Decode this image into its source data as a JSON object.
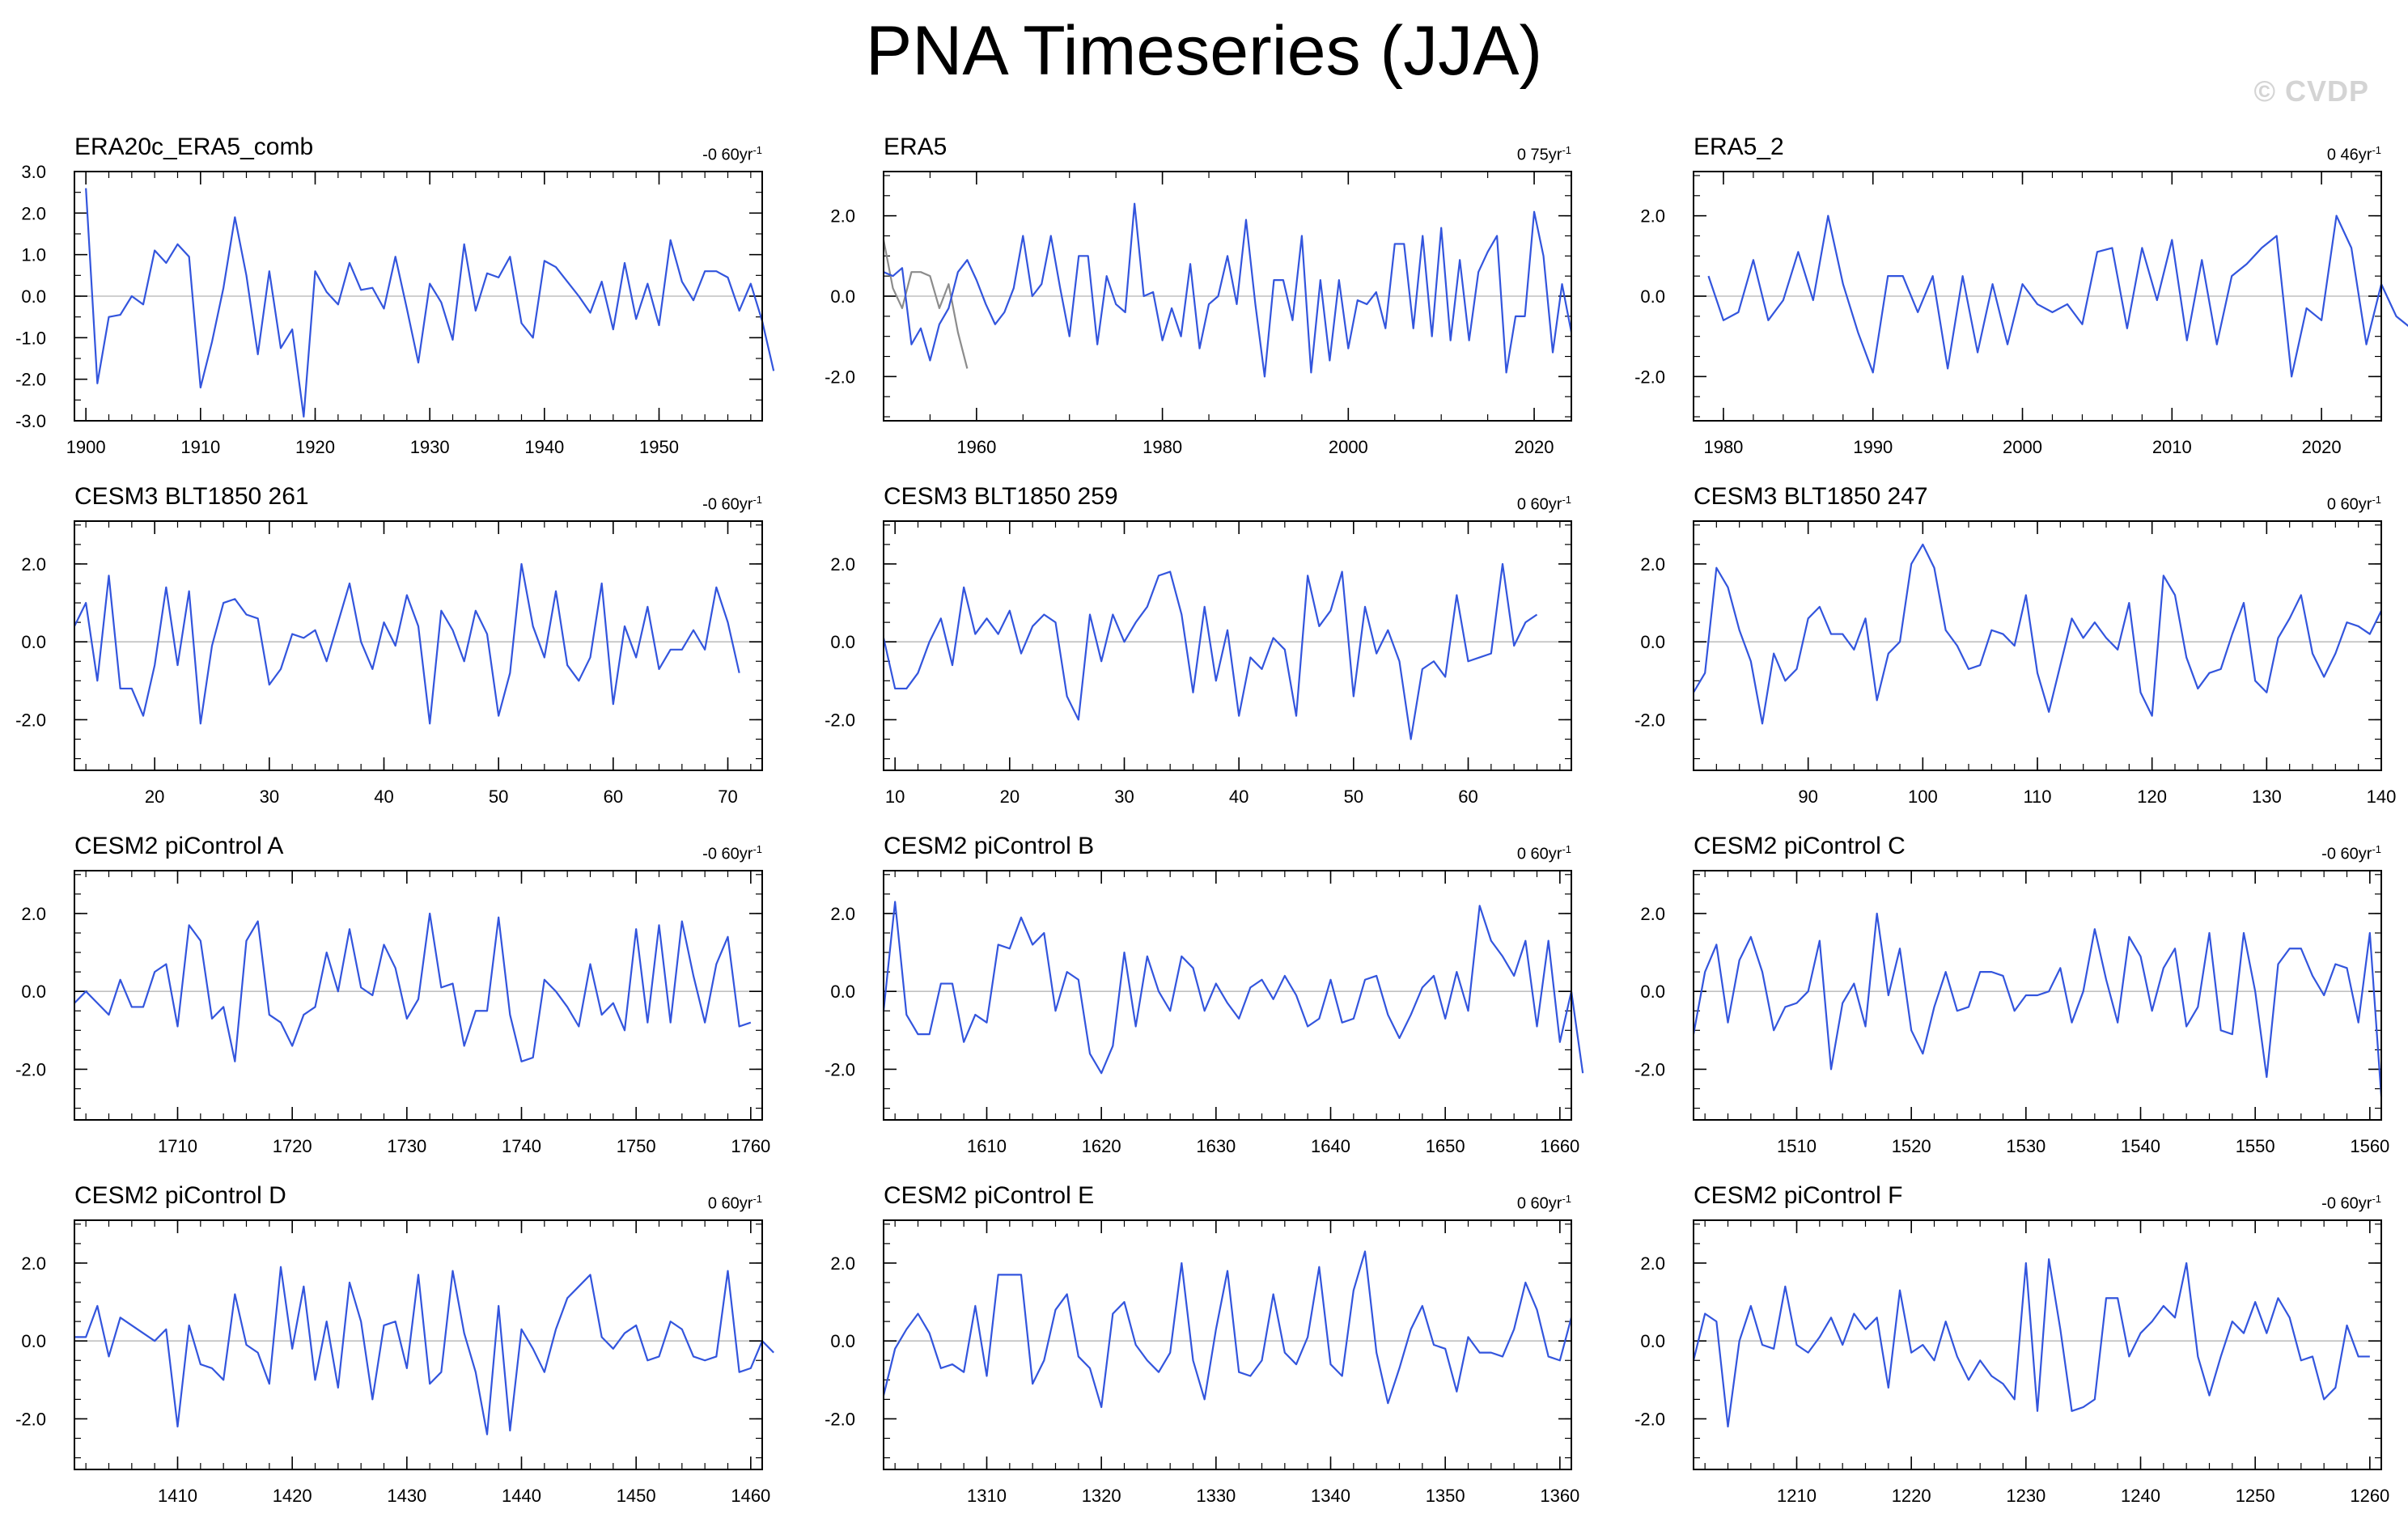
{
  "title": "PNA Timeseries (JJA)",
  "watermark": "© CVDP",
  "trend_unit_suffix": "yr",
  "trend_unit_exponent": "-1",
  "colors": {
    "series_main": "#3355dd",
    "series_secondary": "#8c8c8c",
    "zero_line": "#c0c0c0",
    "frame": "#000000"
  },
  "chart_data": [
    {
      "type": "line",
      "title": "ERA20c_ERA5_comb",
      "trend": "-0 60",
      "xlim": [
        1899,
        1959
      ],
      "ylim": [
        -3,
        3
      ],
      "xticks": [
        1900,
        1910,
        1920,
        1930,
        1940,
        1950
      ],
      "yticks": [
        -3,
        -2,
        -1,
        0,
        1,
        2,
        3
      ],
      "ytick_labels": [
        "-3.0",
        "-2.0",
        "-1.0",
        "0.0",
        "1.0",
        "2.0",
        "3.0"
      ],
      "x_start": 1900,
      "series": [
        {
          "values": [
            2.6,
            -2.1,
            -0.5,
            -0.45,
            0.0,
            -0.2,
            1.1,
            0.8,
            1.25,
            0.95,
            -2.2,
            -1.1,
            0.2,
            1.9,
            0.5,
            -1.4,
            0.6,
            -1.25,
            -0.8,
            -2.9,
            0.6,
            0.1,
            -0.2,
            0.8,
            0.15,
            0.2,
            -0.3,
            0.95,
            -0.3,
            -1.6,
            0.3,
            -0.15,
            -1.05,
            1.25,
            -0.35,
            0.55,
            0.45,
            0.95,
            -0.65,
            -1.0,
            0.85,
            0.7,
            0.35,
            0.0,
            -0.4,
            0.35,
            -0.8,
            0.8,
            -0.55,
            0.3,
            -0.7,
            1.35,
            0.35,
            -0.1,
            0.6,
            0.6,
            0.45,
            -0.35,
            0.3,
            -0.6,
            -1.8
          ]
        }
      ]
    },
    {
      "type": "line",
      "title": "ERA5",
      "trend": "0 75",
      "xlim": [
        1950,
        2024
      ],
      "ylim": [
        -3.1,
        3.1
      ],
      "xticks": [
        1960,
        1980,
        2000,
        2020
      ],
      "yticks": [
        -2,
        0,
        2
      ],
      "ytick_labels": [
        "-2.0",
        "0.0",
        "2.0"
      ],
      "x_start": 1950,
      "series": [
        {
          "values": [
            0.6,
            0.5,
            0.7,
            -1.2,
            -0.8,
            -1.6,
            -0.7,
            -0.3,
            0.6,
            0.9,
            0.4,
            -0.2,
            -0.7,
            -0.4,
            0.2,
            1.5,
            0.0,
            0.3,
            1.5,
            0.2,
            -1.0,
            1.0,
            1.0,
            -1.2,
            0.5,
            -0.2,
            -0.4,
            2.3,
            0.0,
            0.1,
            -1.1,
            -0.3,
            -1.0,
            0.8,
            -1.3,
            -0.2,
            0.0,
            1.0,
            -0.2,
            1.9,
            -0.2,
            -2.0,
            0.4,
            0.4,
            -0.6,
            1.5,
            -1.9,
            0.4,
            -1.6,
            0.4,
            -1.3,
            -0.1,
            -0.2,
            0.1,
            -0.8,
            1.3,
            1.3,
            -0.8,
            1.5,
            -1.0,
            1.7,
            -1.1,
            0.9,
            -1.1,
            0.6,
            1.1,
            1.5,
            -1.9,
            -0.5,
            -0.5,
            2.1,
            1.0,
            -1.4,
            0.3,
            -0.9
          ]
        },
        {
          "values": [
            1.4,
            0.2,
            -0.3,
            0.6,
            0.6,
            0.5,
            -0.3,
            0.3,
            -0.9,
            -1.8
          ]
        }
      ]
    },
    {
      "type": "line",
      "title": "ERA5_2",
      "trend": "0 46",
      "xlim": [
        1978,
        2024
      ],
      "ylim": [
        -3.1,
        3.1
      ],
      "xticks": [
        1980,
        1990,
        2000,
        2010,
        2020
      ],
      "yticks": [
        -2,
        0,
        2
      ],
      "ytick_labels": [
        "-2.0",
        "0.0",
        "2.0"
      ],
      "x_start": 1979,
      "series": [
        {
          "values": [
            0.5,
            -0.6,
            -0.4,
            0.9,
            -0.6,
            -0.1,
            1.1,
            -0.1,
            2.0,
            0.3,
            -0.9,
            -1.9,
            0.5,
            0.5,
            -0.4,
            0.5,
            -1.8,
            0.5,
            -1.4,
            0.3,
            -1.2,
            0.3,
            -0.2,
            -0.4,
            -0.2,
            -0.7,
            1.1,
            1.2,
            -0.8,
            1.2,
            -0.1,
            1.4,
            -1.1,
            0.9,
            -1.2,
            0.5,
            0.8,
            1.2,
            1.5,
            -2.0,
            -0.3,
            -0.6,
            2.0,
            1.2,
            -1.2,
            0.3,
            -0.5,
            -0.8
          ]
        }
      ]
    },
    {
      "type": "line",
      "title": "CESM3 BLT1850 261",
      "trend": "-0 60",
      "xlim": [
        13,
        73
      ],
      "ylim": [
        -3.3,
        3.1
      ],
      "xticks": [
        20,
        30,
        40,
        50,
        60,
        70
      ],
      "yticks": [
        -2,
        0,
        2
      ],
      "ytick_labels": [
        "-2.0",
        "0.0",
        "2.0"
      ],
      "x_start": 13,
      "series": [
        {
          "values": [
            0.4,
            1.0,
            -1.0,
            1.7,
            -1.2,
            -1.2,
            -1.9,
            -0.6,
            1.4,
            -0.6,
            1.3,
            -2.1,
            -0.1,
            1.0,
            1.1,
            0.7,
            0.6,
            -1.1,
            -0.7,
            0.2,
            0.1,
            0.3,
            -0.5,
            0.5,
            1.5,
            0.0,
            -0.7,
            0.5,
            -0.1,
            1.2,
            0.4,
            -2.1,
            0.8,
            0.3,
            -0.5,
            0.8,
            0.2,
            -1.9,
            -0.8,
            2.0,
            0.4,
            -0.4,
            1.3,
            -0.6,
            -1.0,
            -0.4,
            1.5,
            -1.6,
            0.4,
            -0.4,
            0.9,
            -0.7,
            -0.2,
            -0.2,
            0.3,
            -0.2,
            1.4,
            0.5,
            -0.8
          ]
        }
      ]
    },
    {
      "type": "line",
      "title": "CESM3 BLT1850 259",
      "trend": "0 60",
      "xlim": [
        9,
        69
      ],
      "ylim": [
        -3.3,
        3.1
      ],
      "xticks": [
        10,
        20,
        30,
        40,
        50,
        60
      ],
      "yticks": [
        -2,
        0,
        2
      ],
      "ytick_labels": [
        "-2.0",
        "0.0",
        "2.0"
      ],
      "x_start": 9,
      "series": [
        {
          "values": [
            0.1,
            -1.2,
            -1.2,
            -0.8,
            0.0,
            0.6,
            -0.6,
            1.4,
            0.2,
            0.6,
            0.2,
            0.8,
            -0.3,
            0.4,
            0.7,
            0.5,
            -1.4,
            -2.0,
            0.7,
            -0.5,
            0.7,
            0.0,
            0.5,
            0.9,
            1.7,
            1.8,
            0.7,
            -1.3,
            0.9,
            -1.0,
            0.3,
            -1.9,
            -0.4,
            -0.7,
            0.1,
            -0.2,
            -1.9,
            1.7,
            0.4,
            0.8,
            1.8,
            -1.4,
            0.9,
            -0.3,
            0.3,
            -0.5,
            -2.5,
            -0.7,
            -0.5,
            -0.9,
            1.2,
            -0.5,
            -0.4,
            -0.3,
            2.0,
            -0.1,
            0.5,
            0.7
          ]
        }
      ]
    },
    {
      "type": "line",
      "title": "CESM3 BLT1850 247",
      "trend": "0 60",
      "xlim": [
        80,
        140
      ],
      "ylim": [
        -3.3,
        3.1
      ],
      "xticks": [
        90,
        100,
        110,
        120,
        130,
        140
      ],
      "yticks": [
        -2,
        0,
        2
      ],
      "ytick_labels": [
        "-2.0",
        "0.0",
        "2.0"
      ],
      "x_start": 80,
      "series": [
        {
          "values": [
            -1.3,
            -0.8,
            1.9,
            1.4,
            0.3,
            -0.5,
            -2.1,
            -0.3,
            -1.0,
            -0.7,
            0.6,
            0.9,
            0.2,
            0.2,
            -0.2,
            0.6,
            -1.5,
            -0.3,
            0.0,
            2.0,
            2.5,
            1.9,
            0.3,
            -0.1,
            -0.7,
            -0.6,
            0.3,
            0.2,
            -0.1,
            1.2,
            -0.8,
            -1.8,
            -0.6,
            0.6,
            0.1,
            0.5,
            0.1,
            -0.2,
            1.0,
            -1.3,
            -1.9,
            1.7,
            1.2,
            -0.4,
            -1.2,
            -0.8,
            -0.7,
            0.2,
            1.0,
            -1.0,
            -1.3,
            0.1,
            0.6,
            1.2,
            -0.3,
            -0.9,
            -0.3,
            0.5,
            0.4,
            0.2,
            0.8
          ]
        }
      ]
    },
    {
      "type": "line",
      "title": "CESM2 piControl A",
      "trend": "-0 60",
      "xlim": [
        1701,
        1761
      ],
      "ylim": [
        -3.3,
        3.1
      ],
      "xticks": [
        1710,
        1720,
        1730,
        1740,
        1750,
        1760
      ],
      "yticks": [
        -2,
        0,
        2
      ],
      "ytick_labels": [
        "-2.0",
        "0.0",
        "2.0"
      ],
      "x_start": 1701,
      "series": [
        {
          "values": [
            -0.3,
            0.0,
            -0.3,
            -0.6,
            0.3,
            -0.4,
            -0.4,
            0.5,
            0.7,
            -0.9,
            1.7,
            1.3,
            -0.7,
            -0.4,
            -1.8,
            1.3,
            1.8,
            -0.6,
            -0.8,
            -1.4,
            -0.6,
            -0.4,
            1.0,
            0.0,
            1.6,
            0.1,
            -0.1,
            1.2,
            0.6,
            -0.7,
            -0.2,
            2.0,
            0.1,
            0.2,
            -1.4,
            -0.5,
            -0.5,
            1.9,
            -0.6,
            -1.8,
            -1.7,
            0.3,
            0.0,
            -0.4,
            -0.9,
            0.7,
            -0.6,
            -0.3,
            -1.0,
            1.6,
            -0.8,
            1.7,
            -0.8,
            1.8,
            0.4,
            -0.8,
            0.7,
            1.4,
            -0.9,
            -0.8
          ]
        }
      ]
    },
    {
      "type": "line",
      "title": "CESM2 piControl B",
      "trend": "0 60",
      "xlim": [
        1601,
        1661
      ],
      "ylim": [
        -3.3,
        3.1
      ],
      "xticks": [
        1610,
        1620,
        1630,
        1640,
        1650,
        1660
      ],
      "yticks": [
        -2,
        0,
        2
      ],
      "ytick_labels": [
        "-2.0",
        "0.0",
        "2.0"
      ],
      "x_start": 1601,
      "series": [
        {
          "values": [
            -0.5,
            2.3,
            -0.6,
            -1.1,
            -1.1,
            0.2,
            0.2,
            -1.3,
            -0.6,
            -0.8,
            1.2,
            1.1,
            1.9,
            1.2,
            1.5,
            -0.5,
            0.5,
            0.3,
            -1.6,
            -2.1,
            -1.4,
            1.0,
            -0.9,
            0.9,
            0.0,
            -0.5,
            0.9,
            0.6,
            -0.5,
            0.2,
            -0.3,
            -0.7,
            0.1,
            0.3,
            -0.2,
            0.4,
            -0.1,
            -0.9,
            -0.7,
            0.3,
            -0.8,
            -0.7,
            0.3,
            0.4,
            -0.6,
            -1.2,
            -0.6,
            0.1,
            0.4,
            -0.7,
            0.5,
            -0.5,
            2.2,
            1.3,
            0.9,
            0.4,
            1.3,
            -0.9,
            1.3,
            -1.3,
            0.0,
            -2.1
          ]
        }
      ]
    },
    {
      "type": "line",
      "title": "CESM2 piControl C",
      "trend": "-0 60",
      "xlim": [
        1501,
        1561
      ],
      "ylim": [
        -3.3,
        3.1
      ],
      "xticks": [
        1510,
        1520,
        1530,
        1540,
        1550,
        1560
      ],
      "yticks": [
        -2,
        0,
        2
      ],
      "ytick_labels": [
        "-2.0",
        "0.0",
        "2.0"
      ],
      "x_start": 1501,
      "series": [
        {
          "values": [
            -1.1,
            0.5,
            1.2,
            -0.8,
            0.8,
            1.4,
            0.5,
            -1.0,
            -0.4,
            -0.3,
            0.0,
            1.3,
            -2.0,
            -0.3,
            0.2,
            -0.9,
            2.0,
            -0.1,
            1.1,
            -1.0,
            -1.6,
            -0.4,
            0.5,
            -0.5,
            -0.4,
            0.5,
            0.5,
            0.4,
            -0.5,
            -0.1,
            -0.1,
            0.0,
            0.6,
            -0.8,
            0.0,
            1.6,
            0.3,
            -0.8,
            1.4,
            0.9,
            -0.5,
            0.6,
            1.1,
            -0.9,
            -0.4,
            1.5,
            -1.0,
            -1.1,
            1.5,
            0.0,
            -2.2,
            0.7,
            1.1,
            1.1,
            0.4,
            -0.1,
            0.7,
            0.6,
            -0.8,
            1.5,
            -2.7
          ]
        }
      ]
    },
    {
      "type": "line",
      "title": "CESM2 piControl D",
      "trend": "0 60",
      "xlim": [
        1401,
        1461
      ],
      "ylim": [
        -3.3,
        3.1
      ],
      "xticks": [
        1410,
        1420,
        1430,
        1440,
        1450,
        1460
      ],
      "yticks": [
        -2,
        0,
        2
      ],
      "ytick_labels": [
        "-2.0",
        "0.0",
        "2.0"
      ],
      "x_start": 1401,
      "series": [
        {
          "values": [
            0.1,
            0.1,
            0.9,
            -0.4,
            0.6,
            0.4,
            0.2,
            0.0,
            0.3,
            -2.2,
            0.4,
            -0.6,
            -0.7,
            -1.0,
            1.2,
            -0.1,
            -0.3,
            -1.1,
            1.9,
            -0.2,
            1.4,
            -1.0,
            0.5,
            -1.2,
            1.5,
            0.5,
            -1.5,
            0.4,
            0.5,
            -0.7,
            1.7,
            -1.1,
            -0.8,
            1.8,
            0.2,
            -0.8,
            -2.4,
            0.9,
            -2.3,
            0.3,
            -0.2,
            -0.8,
            0.3,
            1.1,
            1.4,
            1.7,
            0.1,
            -0.2,
            0.2,
            0.4,
            -0.5,
            -0.4,
            0.5,
            0.3,
            -0.4,
            -0.5,
            -0.4,
            1.8,
            -0.8,
            -0.7,
            0.0,
            -0.3
          ]
        }
      ]
    },
    {
      "type": "line",
      "title": "CESM2 piControl E",
      "trend": "0 60",
      "xlim": [
        1301,
        1361
      ],
      "ylim": [
        -3.3,
        3.1
      ],
      "xticks": [
        1310,
        1320,
        1330,
        1340,
        1350,
        1360
      ],
      "yticks": [
        -2,
        0,
        2
      ],
      "ytick_labels": [
        "-2.0",
        "0.0",
        "2.0"
      ],
      "x_start": 1301,
      "series": [
        {
          "values": [
            -1.4,
            -0.2,
            0.3,
            0.7,
            0.2,
            -0.7,
            -0.6,
            -0.8,
            0.9,
            -0.9,
            1.7,
            1.7,
            1.7,
            -1.1,
            -0.5,
            0.8,
            1.2,
            -0.4,
            -0.7,
            -1.7,
            0.7,
            1.0,
            -0.1,
            -0.5,
            -0.8,
            -0.3,
            2.0,
            -0.5,
            -1.5,
            0.3,
            1.8,
            -0.8,
            -0.9,
            -0.5,
            1.2,
            -0.3,
            -0.6,
            0.1,
            1.9,
            -0.6,
            -0.9,
            1.3,
            2.3,
            -0.3,
            -1.6,
            -0.7,
            0.3,
            0.9,
            -0.1,
            -0.2,
            -1.3,
            0.1,
            -0.3,
            -0.3,
            -0.4,
            0.3,
            1.5,
            0.8,
            -0.4,
            -0.5,
            0.6
          ]
        }
      ]
    },
    {
      "type": "line",
      "title": "CESM2 piControl F",
      "trend": "-0 60",
      "xlim": [
        1201,
        1261
      ],
      "ylim": [
        -3.3,
        3.1
      ],
      "xticks": [
        1210,
        1220,
        1230,
        1240,
        1250,
        1260
      ],
      "yticks": [
        -2,
        0,
        2
      ],
      "ytick_labels": [
        "-2.0",
        "0.0",
        "2.0"
      ],
      "x_start": 1201,
      "series": [
        {
          "values": [
            -0.5,
            0.7,
            0.5,
            -2.2,
            0.0,
            0.9,
            -0.1,
            -0.2,
            1.4,
            -0.1,
            -0.3,
            0.1,
            0.6,
            -0.1,
            0.7,
            0.3,
            0.6,
            -1.2,
            1.3,
            -0.3,
            -0.1,
            -0.5,
            0.5,
            -0.4,
            -1.0,
            -0.5,
            -0.9,
            -1.1,
            -1.5,
            2.0,
            -1.8,
            2.1,
            0.3,
            -1.8,
            -1.7,
            -1.5,
            1.1,
            1.1,
            -0.4,
            0.2,
            0.5,
            0.9,
            0.6,
            2.0,
            -0.4,
            -1.4,
            -0.4,
            0.5,
            0.2,
            1.0,
            0.2,
            1.1,
            0.6,
            -0.5,
            -0.4,
            -1.5,
            -1.2,
            0.4,
            -0.4,
            -0.4
          ]
        }
      ]
    }
  ]
}
